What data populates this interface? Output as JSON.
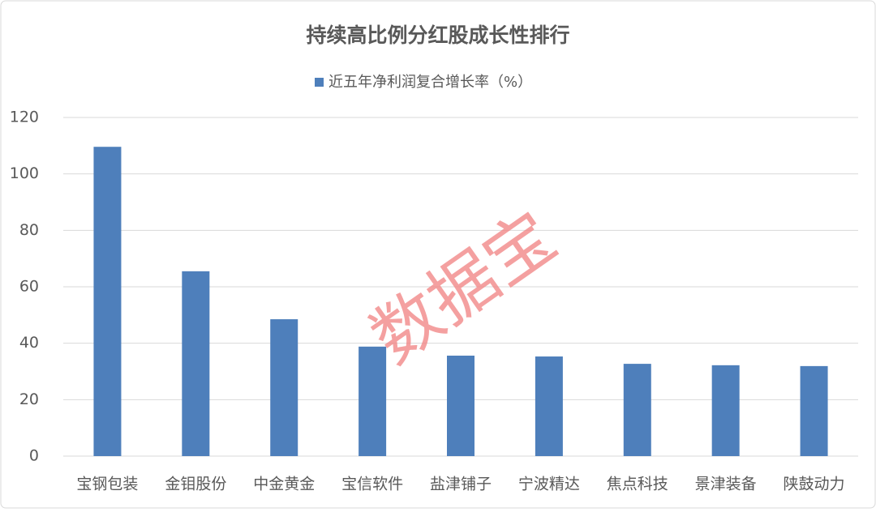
{
  "chart_data": {
    "type": "bar",
    "title": "持续高比例分红股成长性排行",
    "watermark": "数据宝",
    "categories": [
      "宝钢包装",
      "金钼股份",
      "中金黄金",
      "宝信软件",
      "盐津铺子",
      "宁波精达",
      "焦点科技",
      "景津装备",
      "陕鼓动力"
    ],
    "series": [
      {
        "name": "近五年净利润复合增长率（%）",
        "color": "#4e7fbb",
        "values": [
          109.6,
          65.5,
          48.5,
          38.8,
          35.6,
          35.3,
          32.7,
          32.2,
          31.9
        ]
      }
    ],
    "ylim": [
      0,
      120
    ],
    "yticks": [
      0,
      20,
      40,
      60,
      80,
      100,
      120
    ],
    "grid": true
  }
}
